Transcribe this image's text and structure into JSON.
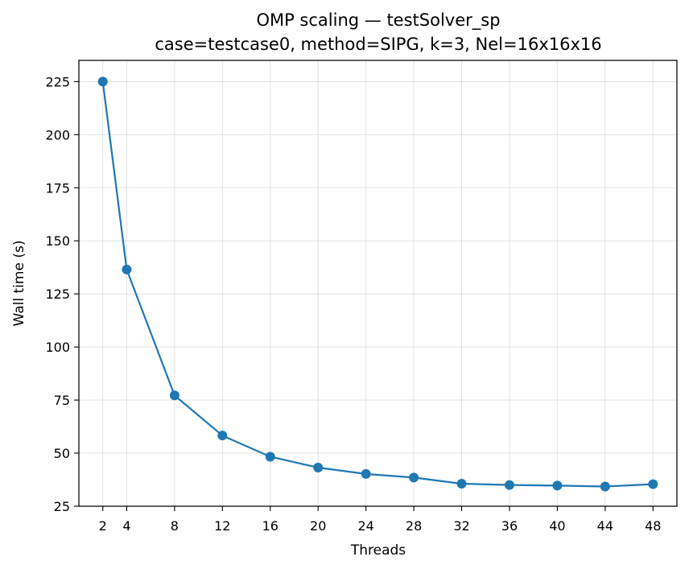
{
  "chart_data": {
    "type": "line",
    "title_line1": "OMP scaling — testSolver_sp",
    "title_line2": "case=testcase0, method=SIPG, k=3, Nel=16x16x16",
    "xlabel": "Threads",
    "ylabel": "Wall time (s)",
    "x": [
      2,
      4,
      8,
      12,
      16,
      20,
      24,
      28,
      32,
      36,
      40,
      44,
      48
    ],
    "series": [
      {
        "name": "testSolver_sp",
        "values": [
          225.0,
          136.5,
          77.2,
          58.3,
          48.3,
          43.2,
          40.2,
          38.5,
          35.6,
          35.0,
          34.7,
          34.3,
          35.4
        ]
      }
    ],
    "xticks": [
      2,
      4,
      8,
      12,
      16,
      20,
      24,
      28,
      32,
      36,
      40,
      44,
      48
    ],
    "yticks": [
      25,
      50,
      75,
      100,
      125,
      150,
      175,
      200,
      225
    ],
    "xlim": [
      0,
      50
    ],
    "ylim": [
      25,
      235
    ],
    "grid": true,
    "color": "#1f77b4"
  }
}
